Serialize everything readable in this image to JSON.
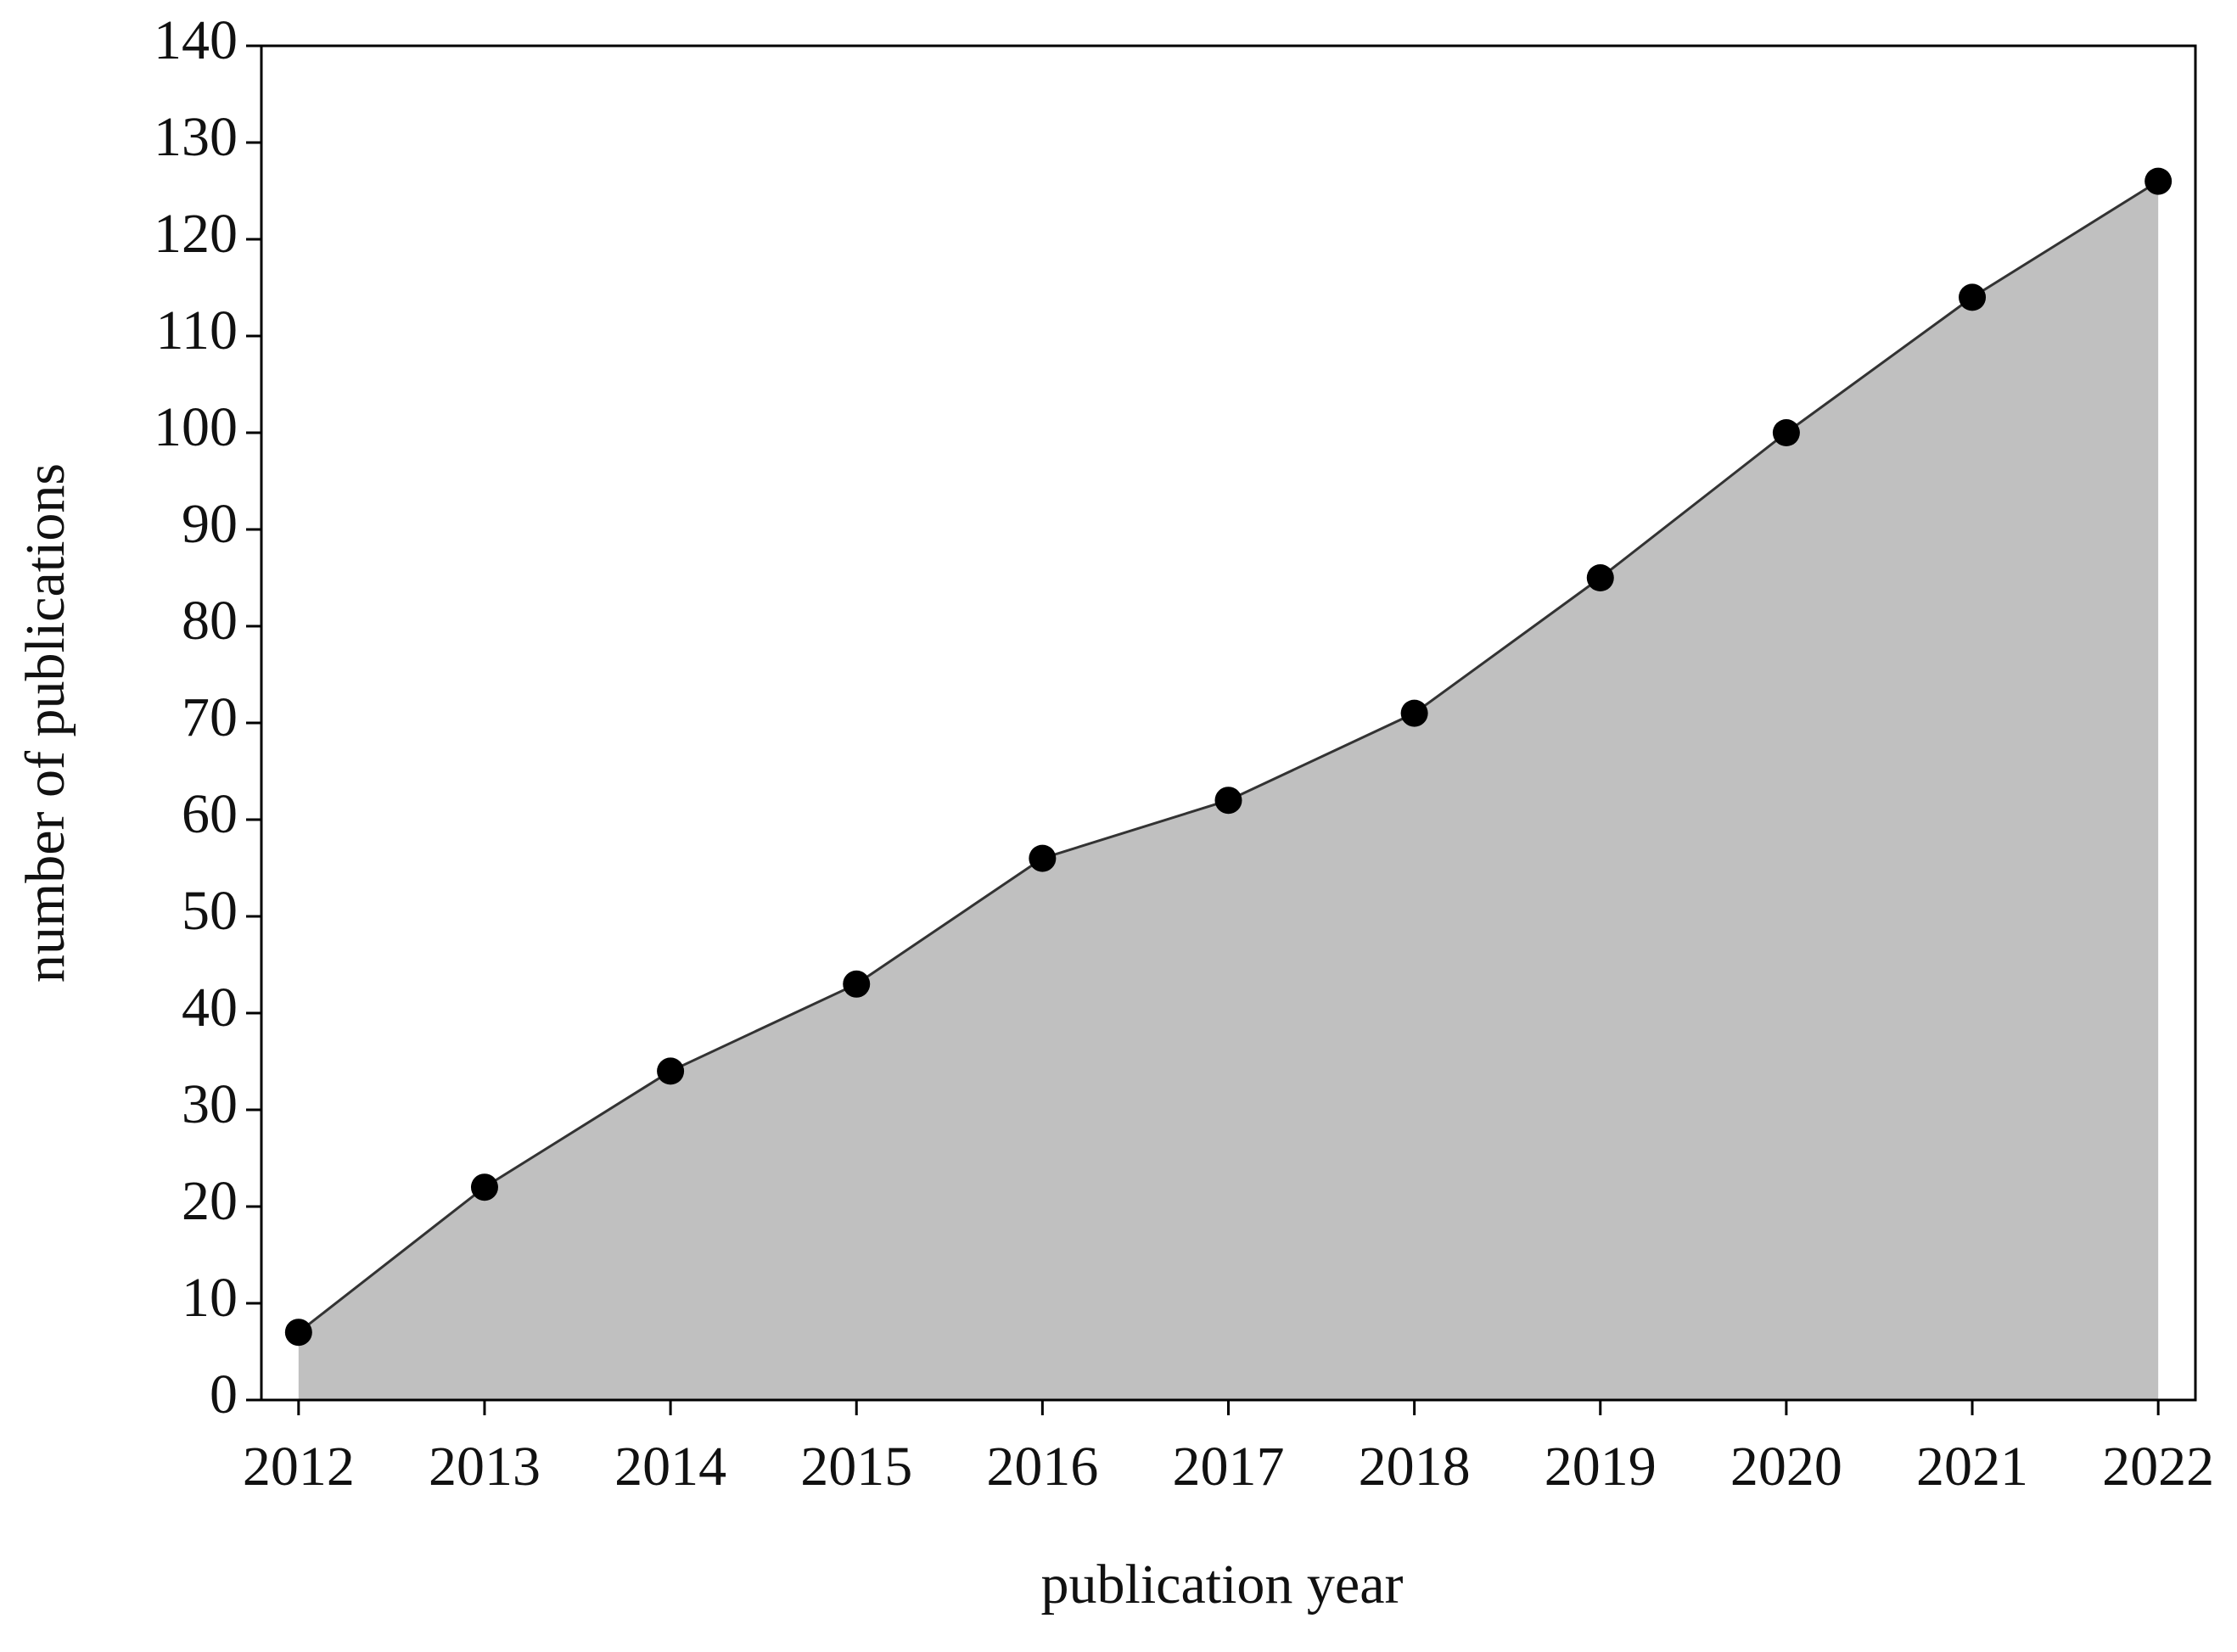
{
  "chart_data": {
    "type": "area",
    "xlabel": "publication year",
    "ylabel": "number of publications",
    "x": [
      2012,
      2013,
      2014,
      2015,
      2016,
      2017,
      2018,
      2019,
      2020,
      2021,
      2022
    ],
    "values": [
      7,
      22,
      34,
      43,
      56,
      62,
      71,
      85,
      100,
      114,
      126
    ],
    "color": "#000000",
    "line_color": "#333333",
    "area_color": "#c0c0c0",
    "xlim": [
      2011.8,
      2022.2
    ],
    "xticks": [
      2012,
      2013,
      2014,
      2015,
      2016,
      2017,
      2018,
      2019,
      2020,
      2021,
      2022
    ],
    "ylim": [
      0,
      140
    ],
    "yticks": [
      0,
      10,
      20,
      30,
      40,
      50,
      60,
      70,
      80,
      90,
      100,
      110,
      120,
      130,
      140
    ],
    "grid": false,
    "markers": true
  }
}
